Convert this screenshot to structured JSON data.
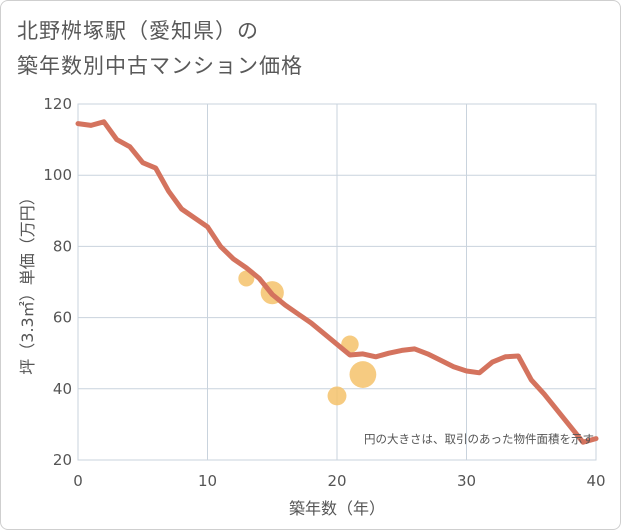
{
  "title_line1": "北野桝塚駅（愛知県）の",
  "title_line2": "築年数別中古マンション価格",
  "chart_data": {
    "type": "line",
    "xlabel": "築年数（年）",
    "ylabel": "坪（3.3㎡）単価（万円）",
    "xlim": [
      0,
      40
    ],
    "ylim": [
      20,
      120
    ],
    "x_ticks": [
      0,
      10,
      20,
      30,
      40
    ],
    "y_ticks": [
      20,
      40,
      60,
      80,
      100,
      120
    ],
    "grid": true,
    "line": {
      "color": "#d4735e",
      "x": [
        0,
        1,
        2,
        3,
        4,
        5,
        6,
        7,
        8,
        9,
        10,
        11,
        12,
        13,
        14,
        15,
        16,
        17,
        18,
        19,
        20,
        21,
        22,
        23,
        24,
        25,
        26,
        27,
        28,
        29,
        30,
        31,
        32,
        33,
        34,
        35,
        36,
        37,
        38,
        39,
        40
      ],
      "y": [
        114.5,
        114.0,
        115.0,
        110.0,
        108.0,
        103.5,
        102.0,
        95.5,
        90.5,
        88.0,
        85.5,
        80.0,
        76.5,
        74.0,
        71.0,
        66.5,
        63.5,
        61.0,
        58.5,
        55.5,
        52.5,
        49.5,
        49.8,
        49.0,
        50.0,
        50.8,
        51.2,
        49.8,
        48.0,
        46.2,
        45.0,
        44.5,
        47.5,
        49.0,
        49.2,
        42.5,
        38.5,
        34.0,
        29.5,
        25.0,
        26.0
      ]
    },
    "bubbles": {
      "color": "#f5c26b",
      "points": [
        {
          "x": 13,
          "y": 71,
          "size": 1.0
        },
        {
          "x": 15,
          "y": 67,
          "size": 2.1
        },
        {
          "x": 21,
          "y": 52.5,
          "size": 1.2
        },
        {
          "x": 20,
          "y": 38,
          "size": 1.4
        },
        {
          "x": 22,
          "y": 44,
          "size": 2.8
        }
      ]
    },
    "note": "円の大きさは、取引のあった物件面積を示す"
  }
}
